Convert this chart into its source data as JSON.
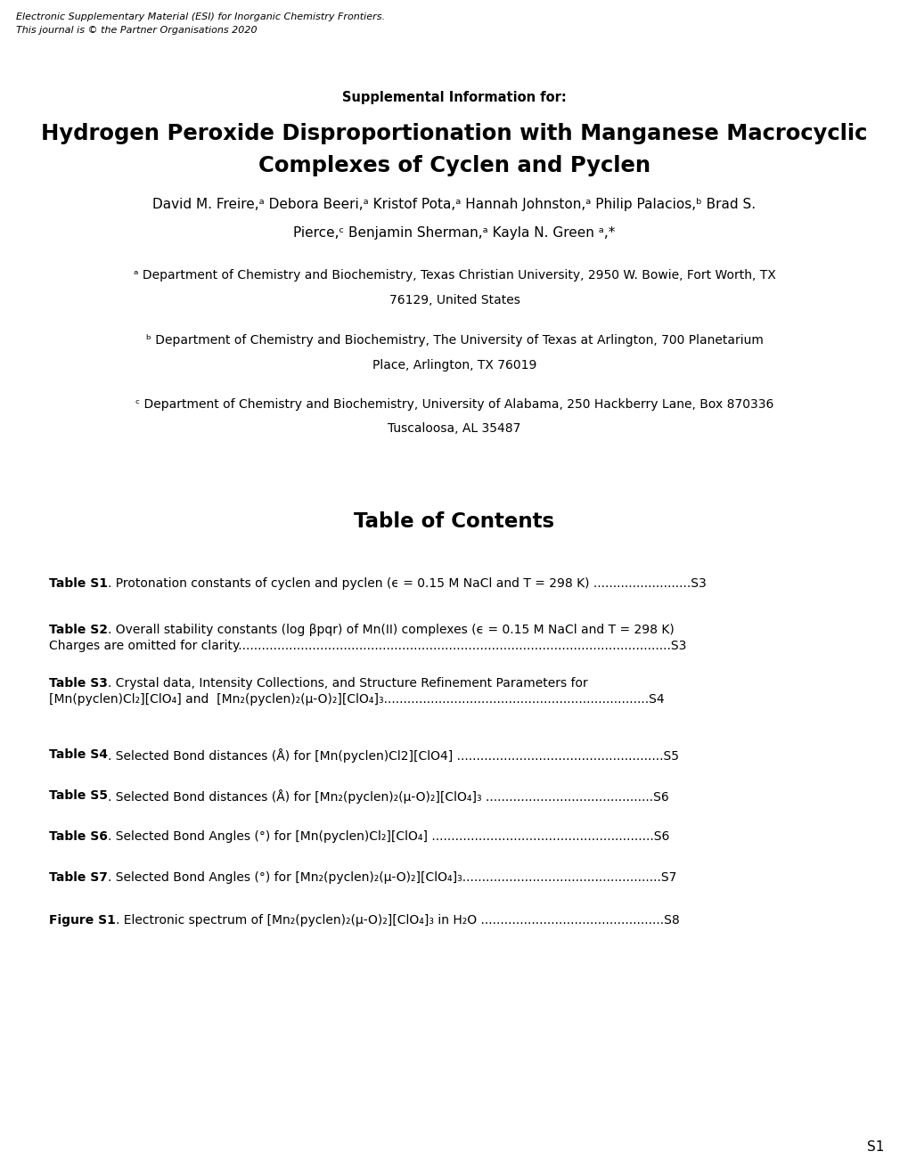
{
  "background_color": "#ffffff",
  "header_line1": "Electronic Supplementary Material (ESI) for Inorganic Chemistry Frontiers.",
  "header_line2": "This journal is © the Partner Organisations 2020",
  "supplemental_info": "Supplemental Information for:",
  "title_line1": "Hydrogen Peroxide Disproportionation with Manganese Macrocyclic",
  "title_line2": "Complexes of Cyclen and Pyclen",
  "authors_line1": "David M. Freire,ᵃ Debora Beeri,ᵃ Kristof Pota,ᵃ Hannah Johnston,ᵃ Philip Palacios,ᵇ Brad S.",
  "authors_line2": "Pierce,ᶜ Benjamin Sherman,ᵃ Kayla N. Green ᵃ,*",
  "affil_a_line1": "ᵃ Department of Chemistry and Biochemistry, Texas Christian University, 2950 W. Bowie, Fort Worth, TX",
  "affil_a_line2": "76129, United States",
  "affil_b_line1": "ᵇ Department of Chemistry and Biochemistry, The University of Texas at Arlington, 700 Planetarium",
  "affil_b_line2": "Place, Arlington, TX 76019",
  "affil_c_line1": "ᶜ Department of Chemistry and Biochemistry, University of Alabama, 250 Hackberry Lane, Box 870336",
  "affil_c_line2": "Tuscaloosa, AL 35487",
  "toc_title": "Table of Contents",
  "toc_entries": [
    {
      "bold": "Table S1",
      "rest1": ". Protonation constants of cyclen and pyclen (ϵ = 0.15 M NaCl and T = 298 K) .........................S3",
      "rest2": ""
    },
    {
      "bold": "Table S2",
      "rest1": ". Overall stability constants (log βpqr) of Mn(II) complexes (ϵ = 0.15 M NaCl and T = 298 K)",
      "rest2": "Charges are omitted for clarity...............................................................................................................S3"
    },
    {
      "bold": "Table S3",
      "rest1": ". Crystal data, Intensity Collections, and Structure Refinement Parameters for",
      "rest2": "[Mn(pyclen)Cl₂][ClO₄] and  [Mn₂(pyclen)₂(μ-O)₂][ClO₄]₃....................................................................S4"
    },
    {
      "bold": "Table S4",
      "rest1": ". Selected Bond distances (Å) for [Mn(pyclen)Cl2][ClO4] .....................................................S5",
      "rest2": ""
    },
    {
      "bold": "Table S5",
      "rest1": ". Selected Bond distances (Å) for [Mn₂(pyclen)₂(μ-O)₂][ClO₄]₃ ...........................................S6",
      "rest2": ""
    },
    {
      "bold": "Table S6",
      "rest1": ". Selected Bond Angles (°) for [Mn(pyclen)Cl₂][ClO₄] .........................................................S6",
      "rest2": ""
    },
    {
      "bold": "Table S7",
      "rest1": ". Selected Bond Angles (°) for [Mn₂(pyclen)₂(μ-O)₂][ClO₄]₃...................................................S7",
      "rest2": ""
    },
    {
      "bold": "Figure S1",
      "rest1": ". Electronic spectrum of [Mn₂(pyclen)₂(μ-O)₂][ClO₄]₃ in H₂O ...............................................S8",
      "rest2": ""
    }
  ],
  "toc_entry_tops": [
    648,
    700,
    760,
    840,
    886,
    932,
    978,
    1026
  ],
  "page_number": "S1"
}
